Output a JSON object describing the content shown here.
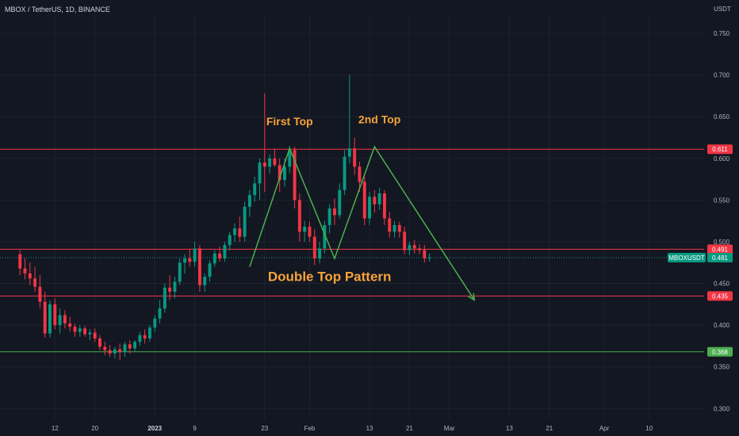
{
  "header": {
    "title": "MBOX / TetherUS, 1D, BINANCE",
    "unit": "USDT"
  },
  "chart_data": {
    "type": "candlestick",
    "symbol": "MBOXUSDT",
    "ylim": [
      0.286,
      0.771
    ],
    "yticks": [
      0.3,
      0.35,
      0.4,
      0.45,
      0.5,
      0.55,
      0.6,
      0.65,
      0.7,
      0.75
    ],
    "ytick_labels": [
      "0.300",
      "0.350",
      "0.400",
      "0.450",
      "0.500",
      "0.550",
      "0.600",
      "0.650",
      "0.700",
      "0.750"
    ],
    "start_date": "2022-12-05",
    "x_days": [
      -4,
      137
    ],
    "xticks": [
      {
        "day": 7,
        "label": "12",
        "bold": false
      },
      {
        "day": 15,
        "label": "20",
        "bold": false
      },
      {
        "day": 27,
        "label": "2023",
        "bold": true
      },
      {
        "day": 35,
        "label": "9",
        "bold": false
      },
      {
        "day": 49,
        "label": "23",
        "bold": false
      },
      {
        "day": 58,
        "label": "Feb",
        "bold": false
      },
      {
        "day": 70,
        "label": "13",
        "bold": false
      },
      {
        "day": 78,
        "label": "21",
        "bold": false
      },
      {
        "day": 86,
        "label": "Mar",
        "bold": false
      },
      {
        "day": 98,
        "label": "13",
        "bold": false
      },
      {
        "day": 106,
        "label": "21",
        "bold": false
      },
      {
        "day": 117,
        "label": "Apr",
        "bold": false
      },
      {
        "day": 126,
        "label": "10",
        "bold": false
      }
    ],
    "candles": [
      [
        0.485,
        0.49,
        0.46,
        0.468
      ],
      [
        0.468,
        0.48,
        0.455,
        0.462
      ],
      [
        0.462,
        0.475,
        0.448,
        0.456
      ],
      [
        0.456,
        0.47,
        0.44,
        0.446
      ],
      [
        0.446,
        0.46,
        0.42,
        0.428
      ],
      [
        0.428,
        0.44,
        0.385,
        0.39
      ],
      [
        0.39,
        0.43,
        0.385,
        0.425
      ],
      [
        0.425,
        0.432,
        0.395,
        0.4
      ],
      [
        0.4,
        0.42,
        0.39,
        0.412
      ],
      [
        0.412,
        0.418,
        0.396,
        0.402
      ],
      [
        0.402,
        0.41,
        0.392,
        0.398
      ],
      [
        0.398,
        0.402,
        0.386,
        0.392
      ],
      [
        0.392,
        0.4,
        0.386,
        0.396
      ],
      [
        0.396,
        0.399,
        0.386,
        0.389
      ],
      [
        0.389,
        0.395,
        0.382,
        0.391
      ],
      [
        0.391,
        0.396,
        0.38,
        0.384
      ],
      [
        0.384,
        0.388,
        0.37,
        0.374
      ],
      [
        0.374,
        0.38,
        0.364,
        0.37
      ],
      [
        0.37,
        0.376,
        0.362,
        0.366
      ],
      [
        0.366,
        0.374,
        0.36,
        0.371
      ],
      [
        0.371,
        0.378,
        0.358,
        0.368
      ],
      [
        0.368,
        0.38,
        0.362,
        0.377
      ],
      [
        0.377,
        0.382,
        0.366,
        0.372
      ],
      [
        0.372,
        0.382,
        0.368,
        0.38
      ],
      [
        0.38,
        0.392,
        0.375,
        0.388
      ],
      [
        0.388,
        0.395,
        0.378,
        0.384
      ],
      [
        0.384,
        0.4,
        0.38,
        0.397
      ],
      [
        0.397,
        0.412,
        0.392,
        0.408
      ],
      [
        0.408,
        0.43,
        0.402,
        0.42
      ],
      [
        0.42,
        0.45,
        0.415,
        0.445
      ],
      [
        0.445,
        0.46,
        0.43,
        0.44
      ],
      [
        0.44,
        0.458,
        0.432,
        0.452
      ],
      [
        0.452,
        0.48,
        0.448,
        0.475
      ],
      [
        0.475,
        0.485,
        0.462,
        0.48
      ],
      [
        0.48,
        0.492,
        0.47,
        0.476
      ],
      [
        0.476,
        0.5,
        0.47,
        0.492
      ],
      [
        0.492,
        0.496,
        0.44,
        0.448
      ],
      [
        0.448,
        0.462,
        0.44,
        0.458
      ],
      [
        0.458,
        0.478,
        0.452,
        0.474
      ],
      [
        0.474,
        0.49,
        0.47,
        0.486
      ],
      [
        0.486,
        0.494,
        0.476,
        0.48
      ],
      [
        0.48,
        0.5,
        0.476,
        0.496
      ],
      [
        0.496,
        0.512,
        0.49,
        0.508
      ],
      [
        0.508,
        0.522,
        0.5,
        0.516
      ],
      [
        0.516,
        0.53,
        0.5,
        0.506
      ],
      [
        0.506,
        0.548,
        0.5,
        0.542
      ],
      [
        0.542,
        0.562,
        0.53,
        0.556
      ],
      [
        0.556,
        0.578,
        0.548,
        0.57
      ],
      [
        0.57,
        0.6,
        0.55,
        0.595
      ],
      [
        0.595,
        0.678,
        0.56,
        0.59
      ],
      [
        0.59,
        0.605,
        0.582,
        0.6
      ],
      [
        0.6,
        0.612,
        0.59,
        0.592
      ],
      [
        0.592,
        0.6,
        0.56,
        0.574
      ],
      [
        0.574,
        0.6,
        0.566,
        0.59
      ],
      [
        0.59,
        0.615,
        0.582,
        0.61
      ],
      [
        0.61,
        0.614,
        0.54,
        0.55
      ],
      [
        0.55,
        0.558,
        0.5,
        0.512
      ],
      [
        0.512,
        0.525,
        0.5,
        0.518
      ],
      [
        0.518,
        0.524,
        0.5,
        0.506
      ],
      [
        0.506,
        0.515,
        0.472,
        0.48
      ],
      [
        0.48,
        0.5,
        0.474,
        0.492
      ],
      [
        0.492,
        0.525,
        0.486,
        0.52
      ],
      [
        0.52,
        0.545,
        0.51,
        0.54
      ],
      [
        0.54,
        0.552,
        0.52,
        0.532
      ],
      [
        0.532,
        0.57,
        0.528,
        0.562
      ],
      [
        0.562,
        0.61,
        0.556,
        0.602
      ],
      [
        0.602,
        0.7,
        0.594,
        0.612
      ],
      [
        0.612,
        0.625,
        0.58,
        0.59
      ],
      [
        0.59,
        0.596,
        0.56,
        0.572
      ],
      [
        0.572,
        0.578,
        0.52,
        0.528
      ],
      [
        0.528,
        0.56,
        0.52,
        0.554
      ],
      [
        0.554,
        0.562,
        0.535,
        0.545
      ],
      [
        0.545,
        0.565,
        0.538,
        0.558
      ],
      [
        0.558,
        0.562,
        0.52,
        0.528
      ],
      [
        0.528,
        0.536,
        0.505,
        0.512
      ],
      [
        0.512,
        0.525,
        0.505,
        0.52
      ],
      [
        0.52,
        0.524,
        0.505,
        0.512
      ],
      [
        0.512,
        0.518,
        0.485,
        0.49
      ],
      [
        0.49,
        0.5,
        0.484,
        0.496
      ],
      [
        0.496,
        0.502,
        0.486,
        0.492
      ],
      [
        0.492,
        0.497,
        0.485,
        0.49
      ],
      [
        0.49,
        0.496,
        0.475,
        0.48
      ],
      [
        0.48,
        0.486,
        0.476,
        0.481
      ]
    ],
    "horizontal_levels": [
      {
        "value": 0.611,
        "label": "0.611",
        "color": "#f23645"
      },
      {
        "value": 0.491,
        "label": "0.491",
        "color": "#f23645"
      },
      {
        "value": 0.435,
        "label": "0.435",
        "color": "#f23645"
      },
      {
        "value": 0.368,
        "label": "0.368",
        "color": "#4caf50"
      }
    ],
    "last_price": {
      "value": 0.481,
      "label": "0.481",
      "color": "#089981"
    },
    "trendlines": [
      {
        "color": "#4caf50",
        "points": [
          [
            46,
            0.47
          ],
          [
            54,
            0.612
          ],
          [
            63,
            0.48
          ],
          [
            71,
            0.614
          ],
          [
            91,
            0.43
          ]
        ]
      }
    ],
    "annotations": [
      {
        "text": "First Top",
        "day": 54,
        "value": 0.64,
        "size": "normal"
      },
      {
        "text": "2nd Top",
        "day": 72,
        "value": 0.642,
        "size": "normal"
      },
      {
        "text": "Double Top Pattern",
        "day": 62,
        "value": 0.453,
        "size": "big"
      }
    ],
    "colors": {
      "up": "#089981",
      "down": "#f23645",
      "background": "#131722"
    }
  }
}
